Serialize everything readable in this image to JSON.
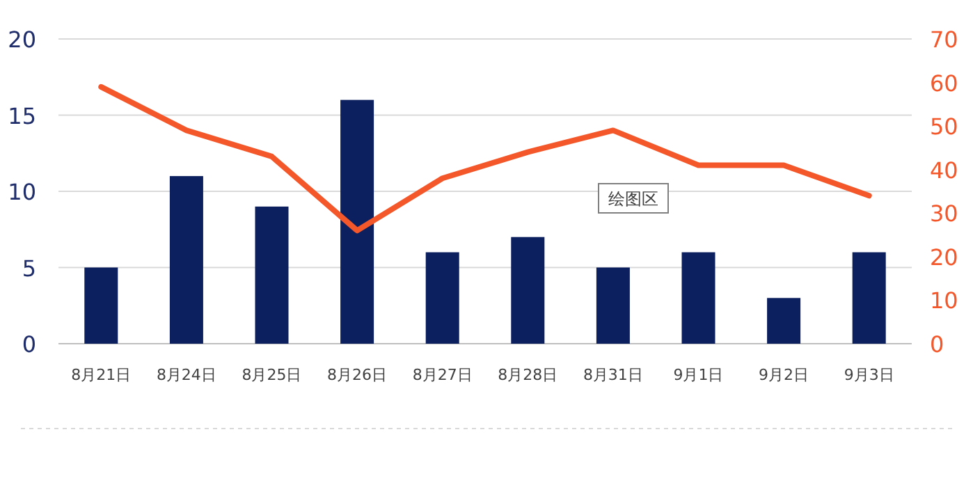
{
  "chart_data": {
    "type": "bar",
    "categories": [
      "8月21日",
      "8月24日",
      "8月25日",
      "8月26日",
      "8月27日",
      "8月28日",
      "8月31日",
      "9月1日",
      "9月2日",
      "9月3日"
    ],
    "series": [
      {
        "color": "#0c1f5e",
        "values": [
          5,
          11,
          9,
          16,
          6,
          7,
          5,
          6,
          3,
          6
        ]
      },
      {
        "type": "line",
        "axis": "y2",
        "color": "#f4572a",
        "values": [
          59,
          49,
          43,
          26,
          38,
          44,
          49,
          41,
          41,
          34
        ]
      }
    ],
    "ylim": [
      0,
      20
    ],
    "yticks": [
      0,
      5,
      10,
      15,
      20
    ],
    "y2lim": [
      0,
      70
    ],
    "y2ticks": [
      0,
      10,
      20,
      30,
      40,
      50,
      60,
      70
    ],
    "grid": "y",
    "marker": "none",
    "annotations": [
      "绘图区"
    ]
  }
}
